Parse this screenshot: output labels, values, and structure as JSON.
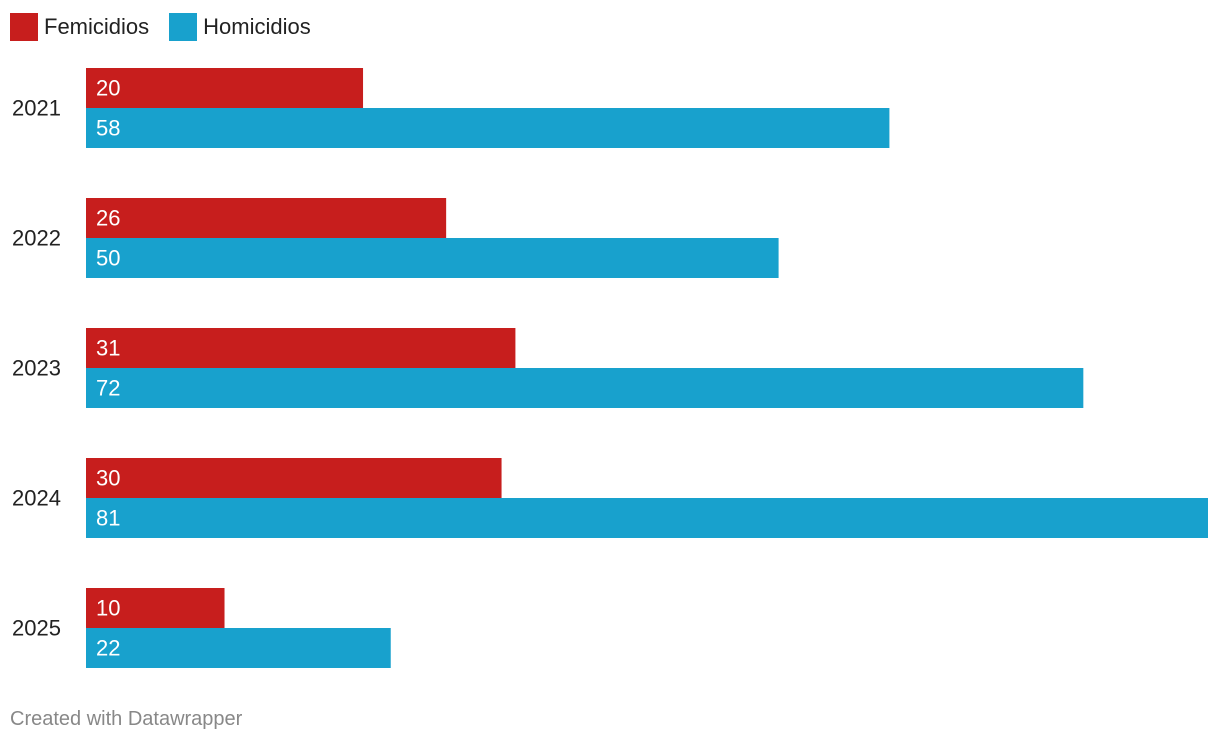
{
  "chart_data": {
    "type": "bar",
    "orientation": "horizontal",
    "categories": [
      "2021",
      "2022",
      "2023",
      "2024",
      "2025"
    ],
    "series": [
      {
        "name": "Femicidios",
        "color": "#c71e1d",
        "values": [
          20,
          26,
          31,
          30,
          10
        ]
      },
      {
        "name": "Homicidios",
        "color": "#18a1cd",
        "values": [
          58,
          50,
          72,
          81,
          22
        ]
      }
    ],
    "xlim": [
      0,
      81
    ],
    "grid": false,
    "legend": "top-left",
    "data_labels": "inside-bar-start"
  },
  "legend": {
    "items": [
      {
        "label": "Femicidios",
        "color": "#c71e1d"
      },
      {
        "label": "Homicidios",
        "color": "#18a1cd"
      }
    ]
  },
  "footer": {
    "credit": "Created with Datawrapper"
  }
}
